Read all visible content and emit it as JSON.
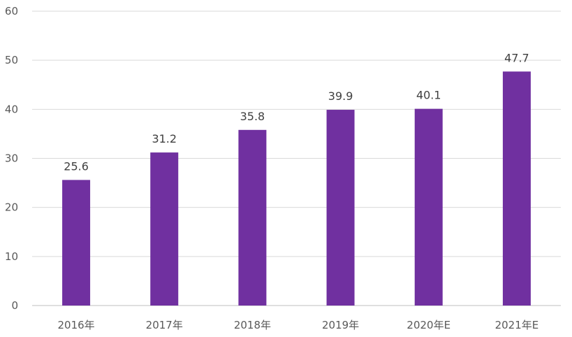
{
  "chart_data": {
    "type": "bar",
    "title": "",
    "xlabel": "",
    "ylabel": "",
    "categories": [
      "2016年",
      "2017年",
      "2018年",
      "2019年",
      "2020年E",
      "2021年E"
    ],
    "values": [
      25.6,
      31.2,
      35.8,
      39.9,
      40.1,
      47.7
    ],
    "value_labels": [
      "25.6",
      "31.2",
      "35.8",
      "39.9",
      "40.1",
      "47.7"
    ],
    "ylim": [
      0,
      60
    ],
    "yticks": [
      0,
      10,
      20,
      30,
      40,
      50,
      60
    ],
    "grid": true,
    "legend": "none",
    "colors": {
      "bar": "#7030a0",
      "grid": "#d9d9d9",
      "axis": "#bfbfbf",
      "tick_text": "#595959",
      "label_text": "#404040"
    }
  }
}
